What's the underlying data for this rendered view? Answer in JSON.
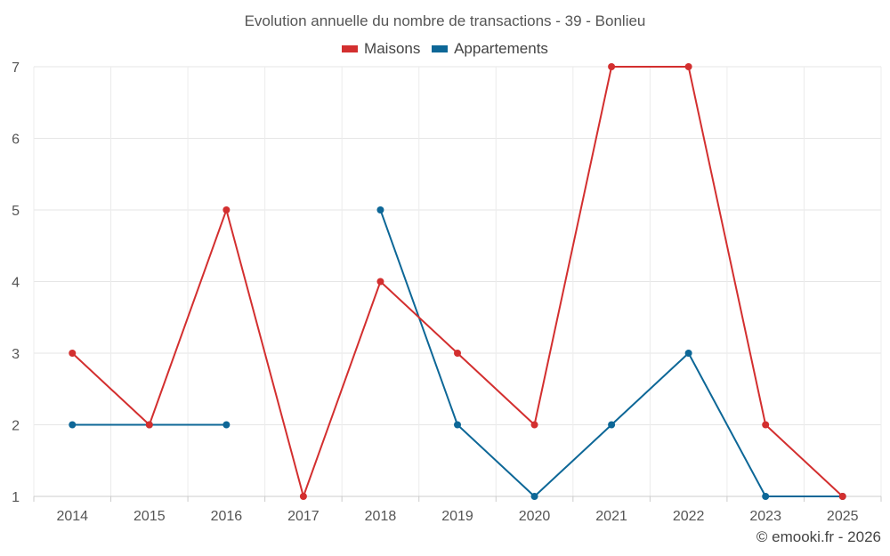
{
  "chart_data": {
    "type": "line",
    "title": "Evolution annuelle du nombre de transactions - 39 - Bonlieu",
    "xlabel": "",
    "ylabel": "",
    "categories": [
      "2014",
      "2015",
      "2016",
      "2017",
      "2018",
      "2019",
      "2020",
      "2021",
      "2022",
      "2023",
      "2025"
    ],
    "ylim": [
      1,
      7
    ],
    "yticks": [
      1,
      2,
      3,
      4,
      5,
      6,
      7
    ],
    "grid": true,
    "legend_position": "top-center",
    "series": [
      {
        "name": "Maisons",
        "color": "#d32f2f",
        "values": [
          3,
          2,
          5,
          1,
          4,
          3,
          2,
          7,
          7,
          2,
          1
        ]
      },
      {
        "name": "Appartements",
        "color": "#0d6797",
        "values": [
          2,
          2,
          2,
          null,
          5,
          2,
          1,
          2,
          3,
          1,
          1
        ]
      }
    ]
  },
  "credit": "© emooki.fr - 2026"
}
